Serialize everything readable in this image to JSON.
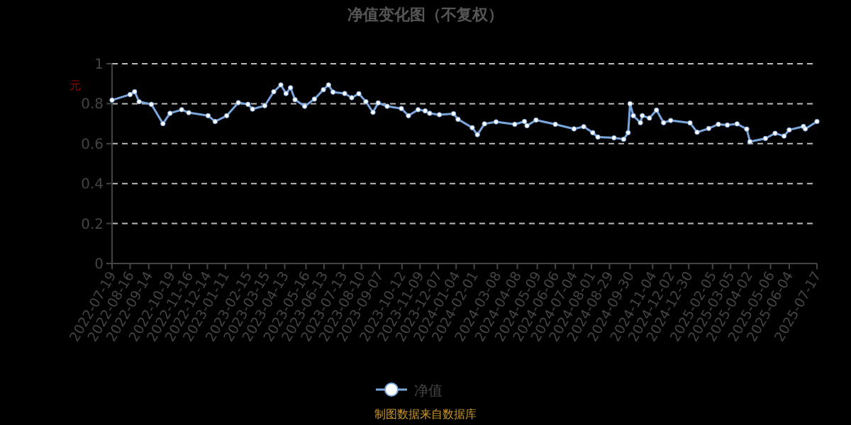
{
  "chart_data": {
    "type": "line",
    "title": "净值变化图（不复权）",
    "ylabel": "元",
    "annotations": [
      "制图数据来自数据库"
    ],
    "xlim": [
      "2022-07-19",
      "2025-07-17"
    ],
    "ylim": [
      0,
      1
    ],
    "yticks": [
      0,
      0.2,
      0.4,
      0.6,
      0.8,
      1
    ],
    "xticks": [
      "2022-07-19",
      "2022-08-16",
      "2022-09-14",
      "2022-10-19",
      "2022-11-16",
      "2022-12-14",
      "2023-01-11",
      "2023-02-15",
      "2023-03-15",
      "2023-04-13",
      "2023-05-16",
      "2023-06-13",
      "2023-07-13",
      "2023-08-10",
      "2023-09-07",
      "2023-10-12",
      "2023-11-09",
      "2023-12-07",
      "2024-01-04",
      "2024-02-01",
      "2024-03-08",
      "2024-04-08",
      "2024-05-09",
      "2024-06-06",
      "2024-07-04",
      "2024-08-01",
      "2024-08-29",
      "2024-09-30",
      "2024-11-04",
      "2024-12-02",
      "2024-12-30",
      "2025-02-05",
      "2025-03-05",
      "2025-04-02",
      "2025-05-06",
      "2025-06-04",
      "2025-07-17"
    ],
    "grid": "y",
    "legend": "bottom",
    "marker": "circle",
    "line_style": "solid",
    "series": [
      {
        "name": "净值",
        "color": "#7aa6dc",
        "x": [
          "2022-07-19",
          "2022-08-16",
          "2022-08-23",
          "2022-08-30",
          "2022-09-18",
          "2022-10-06",
          "2022-10-17",
          "2022-11-04",
          "2022-11-15",
          "2022-12-15",
          "2022-12-26",
          "2023-01-13",
          "2023-01-31",
          "2023-02-15",
          "2023-02-22",
          "2023-03-13",
          "2023-03-27",
          "2023-04-07",
          "2023-04-15",
          "2023-04-22",
          "2023-04-29",
          "2023-05-14",
          "2023-05-29",
          "2023-06-12",
          "2023-06-20",
          "2023-06-27",
          "2023-07-15",
          "2023-07-26",
          "2023-08-06",
          "2023-08-17",
          "2023-08-28",
          "2023-09-05",
          "2023-09-19",
          "2023-10-11",
          "2023-10-22",
          "2023-11-06",
          "2023-11-17",
          "2023-11-24",
          "2023-12-09",
          "2023-12-31",
          "2024-01-07",
          "2024-01-29",
          "2024-02-06",
          "2024-02-17",
          "2024-03-06",
          "2024-04-04",
          "2024-04-19",
          "2024-04-23",
          "2024-05-07",
          "2024-06-06",
          "2024-07-05",
          "2024-07-20",
          "2024-08-03",
          "2024-08-11",
          "2024-09-05",
          "2024-09-20",
          "2024-09-27",
          "2024-09-30",
          "2024-10-05",
          "2024-10-16",
          "2024-10-19",
          "2024-10-30",
          "2024-11-10",
          "2024-11-21",
          "2024-12-02",
          "2025-01-01",
          "2025-01-12",
          "2025-01-30",
          "2025-02-14",
          "2025-02-28",
          "2025-03-15",
          "2025-03-30",
          "2025-04-04",
          "2025-04-28",
          "2025-05-13",
          "2025-05-27",
          "2025-06-04",
          "2025-06-26",
          "2025-06-29",
          "2025-07-17"
        ],
        "values": [
          0.818,
          0.846,
          0.86,
          0.81,
          0.797,
          0.7,
          0.752,
          0.77,
          0.755,
          0.74,
          0.711,
          0.74,
          0.805,
          0.797,
          0.773,
          0.79,
          0.86,
          0.894,
          0.851,
          0.88,
          0.82,
          0.787,
          0.823,
          0.87,
          0.894,
          0.858,
          0.851,
          0.83,
          0.85,
          0.81,
          0.757,
          0.804,
          0.787,
          0.776,
          0.74,
          0.77,
          0.764,
          0.752,
          0.745,
          0.75,
          0.722,
          0.68,
          0.645,
          0.699,
          0.709,
          0.697,
          0.711,
          0.69,
          0.718,
          0.697,
          0.674,
          0.685,
          0.655,
          0.633,
          0.629,
          0.622,
          0.655,
          0.8,
          0.74,
          0.705,
          0.74,
          0.728,
          0.768,
          0.705,
          0.716,
          0.704,
          0.657,
          0.676,
          0.697,
          0.693,
          0.699,
          0.673,
          0.61,
          0.626,
          0.652,
          0.638,
          0.669,
          0.686,
          0.674,
          0.711
        ]
      }
    ]
  }
}
